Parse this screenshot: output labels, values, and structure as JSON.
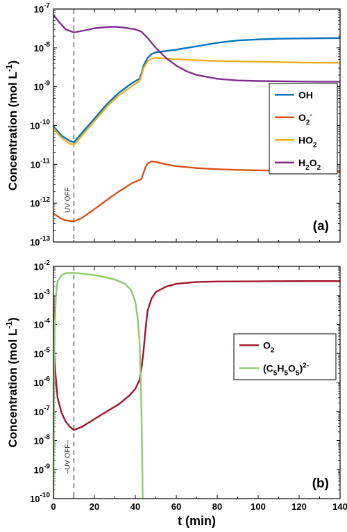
{
  "chart_data": [
    {
      "panel": "(a)",
      "type": "line",
      "ylabel": "Concentration (mol L⁻¹)",
      "yscale": "log",
      "ylim": [
        1e-13,
        1e-07
      ],
      "xlim": [
        0,
        140
      ],
      "xticks": [
        0,
        20,
        40,
        60,
        80,
        100,
        120,
        140
      ],
      "xtick_labels_shown": false,
      "ytick_labels": [
        "10⁻¹³",
        "10⁻¹²",
        "10⁻¹¹",
        "10⁻¹⁰",
        "10⁻⁹",
        "10⁻⁸",
        "10⁻⁷"
      ],
      "annotation": {
        "text": "UV OFF",
        "x": 10
      },
      "legend_position": "right",
      "series": [
        {
          "name": "OH",
          "color": "#0072BD",
          "x": [
            0,
            4,
            8,
            10,
            14,
            20,
            26,
            32,
            38,
            42,
            43,
            44,
            46,
            48,
            50,
            55,
            60,
            70,
            80,
            90,
            100,
            110,
            120,
            130,
            140
          ],
          "y": [
            9.5e-11,
            5.5e-11,
            4e-11,
            3.7e-11,
            6.5e-11,
            1.5e-10,
            3.5e-10,
            7e-10,
            1.2e-09,
            1.6e-09,
            2.2e-09,
            3.5e-09,
            5.5e-09,
            7e-09,
            7.7e-09,
            8.3e-09,
            9e-09,
            1.1e-08,
            1.35e-08,
            1.55e-08,
            1.65e-08,
            1.72e-08,
            1.75e-08,
            1.77e-08,
            1.78e-08
          ]
        },
        {
          "name": "O₂⁻",
          "color": "#D95319",
          "x": [
            0,
            3,
            6,
            10,
            14,
            20,
            26,
            32,
            38,
            43,
            44,
            45,
            46,
            48,
            50,
            55,
            60,
            70,
            80,
            90,
            100,
            110,
            120,
            130,
            140
          ],
          "y": [
            5.5e-13,
            4.2e-13,
            3.6e-13,
            3.4e-13,
            4.2e-13,
            7e-13,
            1.2e-12,
            2e-12,
            3.2e-12,
            4.2e-12,
            6e-12,
            8.5e-12,
            1.05e-11,
            1.2e-11,
            1.15e-11,
            1e-11,
            9e-12,
            8e-12,
            7.5e-12,
            7.2e-12,
            7e-12,
            6.9e-12,
            6.8e-12,
            6.7e-12,
            6.6e-12
          ]
        },
        {
          "name": "HO₂",
          "color": "#EDB120",
          "x": [
            0,
            4,
            8,
            10,
            14,
            20,
            26,
            32,
            38,
            42,
            43,
            44,
            46,
            48,
            50,
            55,
            60,
            70,
            80,
            90,
            100,
            110,
            120,
            130,
            140
          ],
          "y": [
            8.5e-11,
            4.8e-11,
            3.4e-11,
            3.2e-11,
            5.5e-11,
            1.3e-10,
            3e-10,
            6e-10,
            1e-09,
            1.4e-09,
            1.9e-09,
            3e-09,
            4.5e-09,
            5.3e-09,
            5.5e-09,
            5.3e-09,
            5.1e-09,
            4.8e-09,
            4.6e-09,
            4.5e-09,
            4.4e-09,
            4.3e-09,
            4.2e-09,
            4.15e-09,
            4.1e-09
          ]
        },
        {
          "name": "H₂O₂",
          "color": "#7E2F8E",
          "x": [
            0,
            3,
            6,
            10,
            15,
            20,
            25,
            30,
            35,
            40,
            43,
            46,
            50,
            55,
            60,
            65,
            70,
            80,
            90,
            100,
            110,
            120,
            130,
            140
          ],
          "y": [
            7e-08,
            4.5e-08,
            3e-08,
            2.5e-08,
            2.8e-08,
            3.2e-08,
            3.4e-08,
            3.5e-08,
            3.3e-08,
            3e-08,
            2.6e-08,
            1.8e-08,
            1e-08,
            5.5e-09,
            3.5e-09,
            2.5e-09,
            2e-09,
            1.6e-09,
            1.45e-09,
            1.4e-09,
            1.38e-09,
            1.36e-09,
            1.35e-09,
            1.35e-09
          ]
        }
      ]
    },
    {
      "panel": "(b)",
      "type": "line",
      "ylabel": "Concentration (mol L⁻¹)",
      "xlabel": "t (min)",
      "yscale": "log",
      "ylim": [
        1e-10,
        0.01
      ],
      "xlim": [
        0,
        140
      ],
      "xticks": [
        0,
        20,
        40,
        60,
        80,
        100,
        120,
        140
      ],
      "xtick_labels": [
        "0",
        "20",
        "40",
        "60",
        "80",
        "100",
        "120",
        "140"
      ],
      "ytick_labels": [
        "10⁻¹⁰",
        "10⁻⁹",
        "10⁻⁸",
        "10⁻⁷",
        "10⁻⁶",
        "10⁻⁵",
        "10⁻⁴",
        "10⁻³",
        "10⁻²"
      ],
      "annotation": {
        "text": "UV OFF",
        "x": 10
      },
      "legend_position": "right",
      "series": [
        {
          "name": "O₂",
          "color": "#A2142F",
          "x": [
            0,
            0.5,
            1,
            2,
            4,
            6,
            8,
            10,
            14,
            20,
            26,
            32,
            37,
            40,
            42,
            43,
            44,
            45,
            46,
            48,
            50,
            55,
            60,
            70,
            80,
            100,
            120,
            140
          ],
          "y": [
            0.001,
            1e-05,
            2e-06,
            3e-07,
            9e-08,
            4.5e-08,
            3e-08,
            2.3e-08,
            3e-08,
            5.5e-08,
            1e-07,
            1.8e-07,
            3.5e-07,
            6e-07,
            1.2e-06,
            3e-06,
            1.2e-05,
            7e-05,
            0.0003,
            0.0008,
            0.0013,
            0.002,
            0.0025,
            0.0029,
            0.003,
            0.00305,
            0.0031,
            0.0031
          ]
        },
        {
          "name": "(C₅H₅O₅)²⁻",
          "color": "#8DCB6B",
          "x": [
            0,
            0.3,
            0.7,
            1.2,
            2,
            4,
            6,
            8,
            10,
            15,
            20,
            25,
            30,
            35,
            38,
            40,
            41,
            42,
            42.5,
            43,
            43.3,
            43.6
          ],
          "y": [
            1e-10,
            1e-06,
            0.0001,
            0.001,
            0.003,
            0.005,
            0.0058,
            0.006,
            0.006,
            0.0055,
            0.005,
            0.0043,
            0.0035,
            0.0025,
            0.0015,
            0.0006,
            0.0002,
            3e-05,
            3e-06,
            1e-07,
            5e-09,
            1e-10
          ]
        }
      ]
    }
  ]
}
